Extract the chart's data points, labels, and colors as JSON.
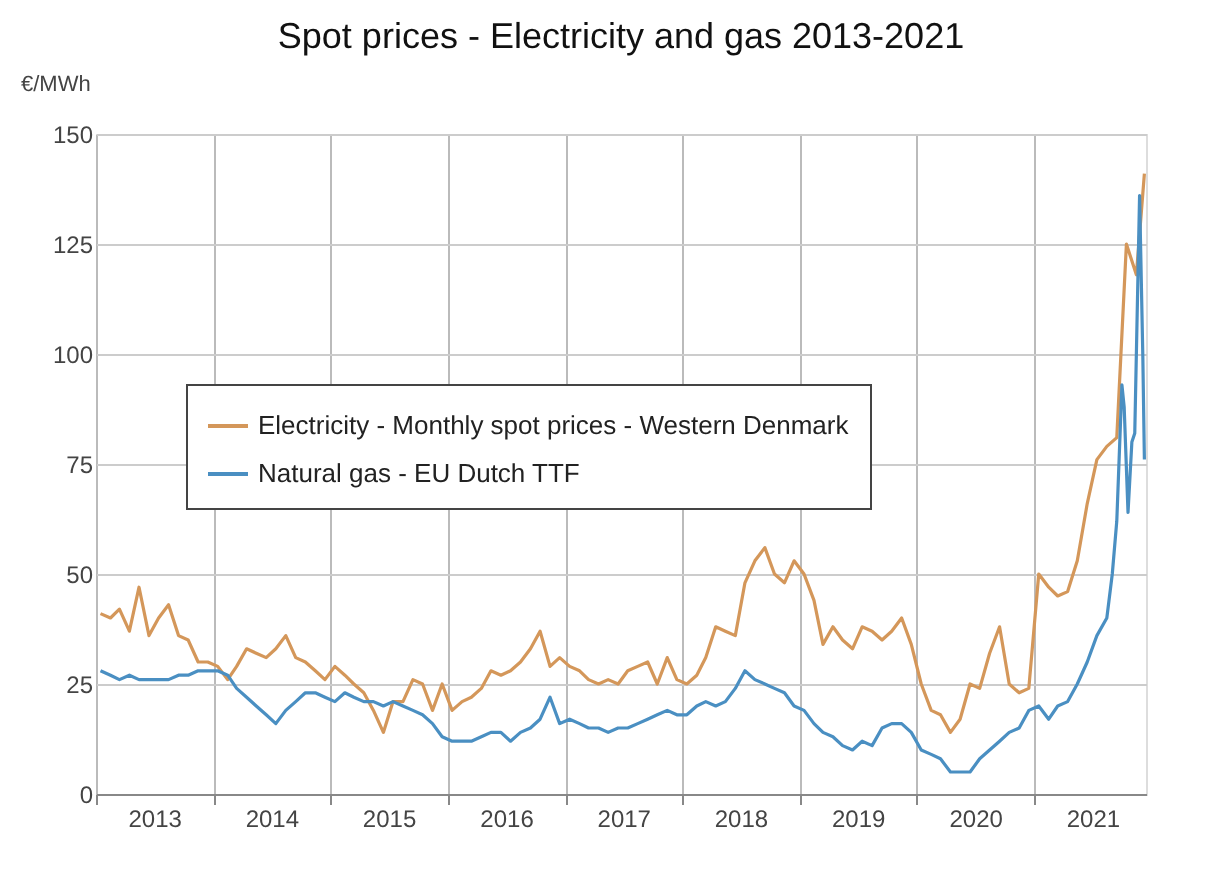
{
  "chart_data": {
    "type": "line",
    "title": "Spot prices - Electricity and gas 2013-2021",
    "ylabel": "€/MWh",
    "xlim": [
      "2013-01-01",
      "2021-12-15"
    ],
    "xticks": [
      {
        "value": "2013-01-01",
        "label": null
      },
      {
        "value": "2013-07-01",
        "label": "2013"
      },
      {
        "value": "2014-01-01",
        "label": null
      },
      {
        "value": "2014-07-01",
        "label": "2014"
      },
      {
        "value": "2015-01-01",
        "label": null
      },
      {
        "value": "2015-07-01",
        "label": "2015"
      },
      {
        "value": "2016-01-01",
        "label": null
      },
      {
        "value": "2016-07-01",
        "label": "2016"
      },
      {
        "value": "2017-01-01",
        "label": null
      },
      {
        "value": "2017-07-01",
        "label": "2017"
      },
      {
        "value": "2018-01-01",
        "label": null
      },
      {
        "value": "2018-07-01",
        "label": "2018"
      },
      {
        "value": "2019-01-01",
        "label": null
      },
      {
        "value": "2019-07-01",
        "label": "2019"
      },
      {
        "value": "2020-01-01",
        "label": null
      },
      {
        "value": "2020-07-01",
        "label": "2020"
      },
      {
        "value": "2021-01-01",
        "label": null
      },
      {
        "value": "2021-07-01",
        "label": "2021"
      }
    ],
    "ylim": [
      0,
      150
    ],
    "yticks": [
      0,
      25,
      50,
      75,
      100,
      125,
      150
    ],
    "grid": true,
    "legend": "left",
    "marker": "none",
    "line_style": "solid",
    "series": [
      {
        "name": "Electricity - Monthly spot prices - Western Denmark",
        "color": "#d4975a",
        "x": [
          "2013-01-15",
          "2013-02-15",
          "2013-03-15",
          "2013-04-15",
          "2013-05-15",
          "2013-06-15",
          "2013-07-15",
          "2013-08-15",
          "2013-09-15",
          "2013-10-15",
          "2013-11-15",
          "2013-12-15",
          "2014-01-15",
          "2014-02-15",
          "2014-03-15",
          "2014-04-15",
          "2014-05-15",
          "2014-06-15",
          "2014-07-15",
          "2014-08-15",
          "2014-09-15",
          "2014-10-15",
          "2014-11-15",
          "2014-12-15",
          "2015-01-15",
          "2015-02-15",
          "2015-03-15",
          "2015-04-15",
          "2015-05-15",
          "2015-06-15",
          "2015-07-15",
          "2015-08-15",
          "2015-09-15",
          "2015-10-15",
          "2015-11-15",
          "2015-12-15",
          "2016-01-15",
          "2016-02-15",
          "2016-03-15",
          "2016-04-15",
          "2016-05-15",
          "2016-06-15",
          "2016-07-15",
          "2016-08-15",
          "2016-09-15",
          "2016-10-15",
          "2016-11-15",
          "2016-12-15",
          "2017-01-15",
          "2017-02-15",
          "2017-03-15",
          "2017-04-15",
          "2017-05-15",
          "2017-06-15",
          "2017-07-15",
          "2017-08-15",
          "2017-09-15",
          "2017-10-15",
          "2017-11-15",
          "2017-12-15",
          "2018-01-15",
          "2018-02-15",
          "2018-03-15",
          "2018-04-15",
          "2018-05-15",
          "2018-06-15",
          "2018-07-15",
          "2018-08-15",
          "2018-09-15",
          "2018-10-15",
          "2018-11-15",
          "2018-12-15",
          "2019-01-15",
          "2019-02-15",
          "2019-03-15",
          "2019-04-15",
          "2019-05-15",
          "2019-06-15",
          "2019-07-15",
          "2019-08-15",
          "2019-09-15",
          "2019-10-15",
          "2019-11-15",
          "2019-12-15",
          "2020-01-15",
          "2020-02-15",
          "2020-03-15",
          "2020-04-15",
          "2020-05-15",
          "2020-06-15",
          "2020-07-15",
          "2020-08-15",
          "2020-09-15",
          "2020-10-15",
          "2020-11-15",
          "2020-12-15",
          "2021-01-15",
          "2021-02-15",
          "2021-03-15",
          "2021-04-15",
          "2021-05-15",
          "2021-06-15",
          "2021-07-15",
          "2021-08-15",
          "2021-09-15",
          "2021-10-15",
          "2021-11-15",
          "2021-12-10"
        ],
        "values": [
          41,
          40,
          42,
          37,
          47,
          36,
          40,
          43,
          36,
          35,
          30,
          30,
          29,
          26,
          29,
          33,
          32,
          31,
          33,
          36,
          31,
          30,
          28,
          26,
          29,
          27,
          25,
          23,
          19,
          14,
          21,
          21,
          26,
          25,
          19,
          25,
          19,
          21,
          22,
          24,
          28,
          27,
          28,
          30,
          33,
          37,
          29,
          31,
          29,
          28,
          26,
          25,
          26,
          25,
          28,
          29,
          30,
          25,
          31,
          26,
          25,
          27,
          31,
          38,
          37,
          36,
          48,
          53,
          56,
          50,
          48,
          53,
          50,
          44,
          34,
          38,
          35,
          33,
          38,
          37,
          35,
          37,
          40,
          34,
          25,
          19,
          18,
          14,
          17,
          25,
          24,
          32,
          38,
          25,
          23,
          24,
          50,
          47,
          45,
          46,
          53,
          66,
          76,
          79,
          81,
          125,
          118,
          141
        ]
      },
      {
        "name": "Natural gas - EU Dutch TTF",
        "color": "#4a8fc2",
        "x": [
          "2013-01-15",
          "2013-02-15",
          "2013-03-15",
          "2013-04-15",
          "2013-05-15",
          "2013-06-15",
          "2013-07-15",
          "2013-08-15",
          "2013-09-15",
          "2013-10-15",
          "2013-11-15",
          "2013-12-15",
          "2014-01-15",
          "2014-02-15",
          "2014-03-15",
          "2014-04-15",
          "2014-05-15",
          "2014-06-15",
          "2014-07-15",
          "2014-08-15",
          "2014-09-15",
          "2014-10-15",
          "2014-11-15",
          "2014-12-15",
          "2015-01-15",
          "2015-02-15",
          "2015-03-15",
          "2015-04-15",
          "2015-05-15",
          "2015-06-15",
          "2015-07-15",
          "2015-08-15",
          "2015-09-15",
          "2015-10-15",
          "2015-11-15",
          "2015-12-15",
          "2016-01-15",
          "2016-02-15",
          "2016-03-15",
          "2016-04-15",
          "2016-05-15",
          "2016-06-15",
          "2016-07-15",
          "2016-08-15",
          "2016-09-15",
          "2016-10-15",
          "2016-11-15",
          "2016-12-15",
          "2017-01-15",
          "2017-02-15",
          "2017-03-15",
          "2017-04-15",
          "2017-05-15",
          "2017-06-15",
          "2017-07-15",
          "2017-08-15",
          "2017-09-15",
          "2017-10-15",
          "2017-11-15",
          "2017-12-15",
          "2018-01-15",
          "2018-02-15",
          "2018-03-15",
          "2018-04-15",
          "2018-05-15",
          "2018-06-15",
          "2018-07-15",
          "2018-08-15",
          "2018-09-15",
          "2018-10-15",
          "2018-11-15",
          "2018-12-15",
          "2019-01-15",
          "2019-02-15",
          "2019-03-15",
          "2019-04-15",
          "2019-05-15",
          "2019-06-15",
          "2019-07-15",
          "2019-08-15",
          "2019-09-15",
          "2019-10-15",
          "2019-11-15",
          "2019-12-15",
          "2020-01-15",
          "2020-02-15",
          "2020-03-15",
          "2020-04-15",
          "2020-05-15",
          "2020-06-15",
          "2020-07-15",
          "2020-08-15",
          "2020-09-15",
          "2020-10-15",
          "2020-11-15",
          "2020-12-15",
          "2021-01-15",
          "2021-02-15",
          "2021-03-15",
          "2021-04-15",
          "2021-05-15",
          "2021-06-15",
          "2021-07-15",
          "2021-08-15",
          "2021-09-01",
          "2021-09-15",
          "2021-10-01",
          "2021-10-08",
          "2021-10-20",
          "2021-11-01",
          "2021-11-10",
          "2021-11-25",
          "2021-12-05",
          "2021-12-10"
        ],
        "values": [
          28,
          27,
          26,
          27,
          26,
          26,
          26,
          26,
          27,
          27,
          28,
          28,
          28,
          27,
          24,
          22,
          20,
          18,
          16,
          19,
          21,
          23,
          23,
          22,
          21,
          23,
          22,
          21,
          21,
          20,
          21,
          20,
          19,
          18,
          16,
          13,
          12,
          12,
          12,
          13,
          14,
          14,
          12,
          14,
          15,
          17,
          22,
          16,
          17,
          16,
          15,
          15,
          14,
          15,
          15,
          16,
          17,
          18,
          19,
          18,
          18,
          20,
          21,
          20,
          21,
          24,
          28,
          26,
          25,
          24,
          23,
          20,
          19,
          16,
          14,
          13,
          11,
          10,
          12,
          11,
          15,
          16,
          16,
          14,
          10,
          9,
          8,
          5,
          5,
          5,
          8,
          10,
          12,
          14,
          15,
          19,
          20,
          17,
          20,
          21,
          25,
          30,
          36,
          40,
          50,
          62,
          93,
          88,
          64,
          80,
          82,
          136,
          100,
          76
        ]
      }
    ]
  }
}
